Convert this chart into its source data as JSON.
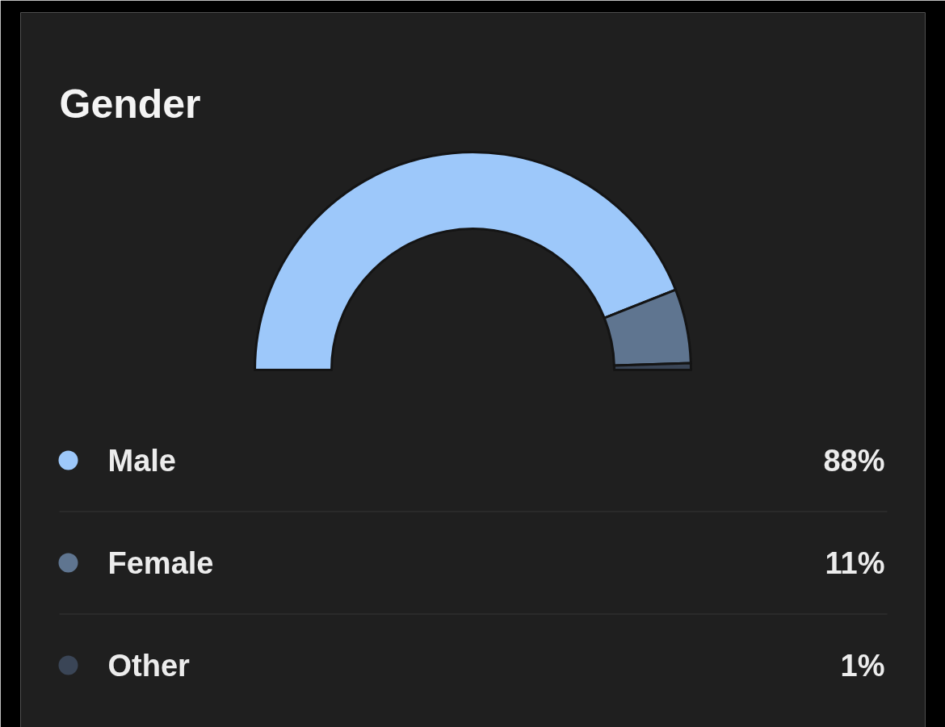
{
  "chart_data": {
    "type": "donut",
    "title": "Gender",
    "categories": [
      "Male",
      "Female",
      "Other"
    ],
    "values": [
      88,
      11,
      1
    ],
    "colors": [
      "#9dc8fa",
      "#5f7590",
      "#3a4556"
    ],
    "value_labels": [
      "88%",
      "11%",
      "1%"
    ],
    "legend": "bottom"
  }
}
